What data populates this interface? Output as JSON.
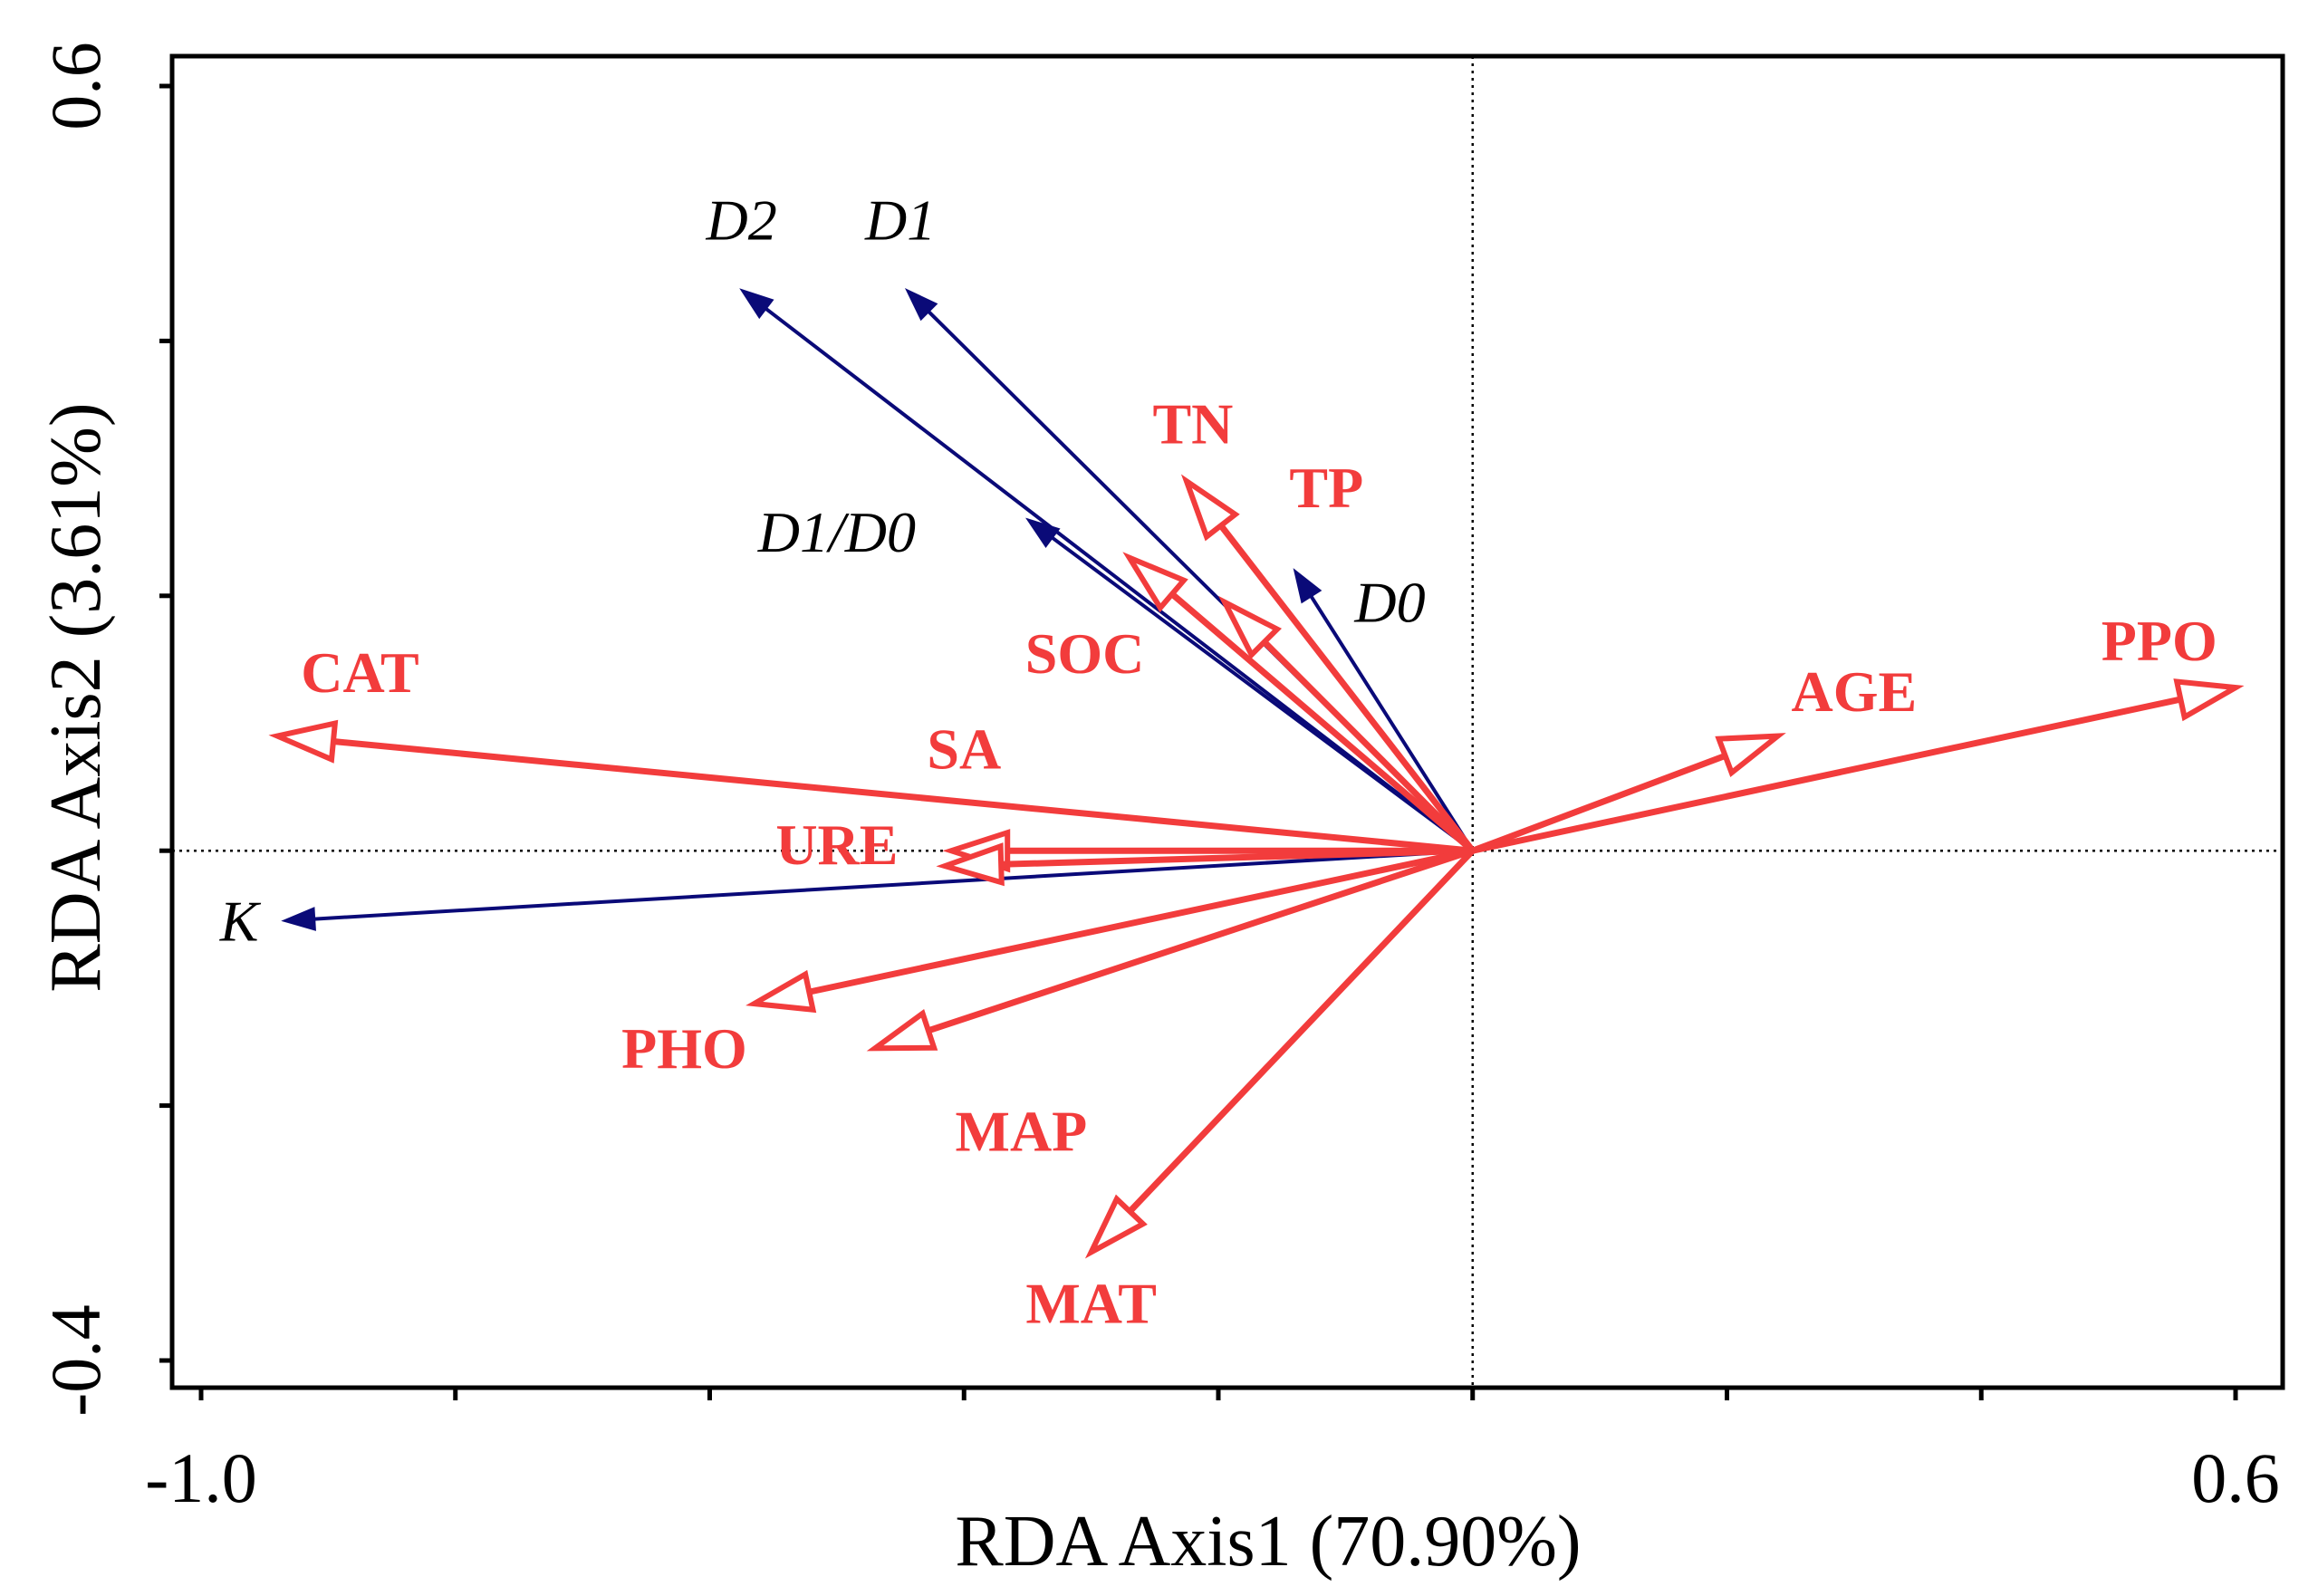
{
  "chart_data": {
    "type": "biplot",
    "title": "",
    "xlabel": "RDA Axis1 (70.90%)",
    "ylabel": "RDA Axis2 (3.61%)",
    "xlim": [
      -1.0,
      0.6
    ],
    "ylim": [
      -0.4,
      0.6
    ],
    "x_tick_labels": [
      {
        "value": -1.0,
        "text": "-1.0"
      },
      {
        "value": 0.6,
        "text": "0.6"
      }
    ],
    "y_tick_labels": [
      {
        "value": 0.6,
        "text": "0.6"
      },
      {
        "value": -0.4,
        "text": "-0.4"
      }
    ],
    "x_minor_ticks": [
      -1.0,
      -0.8,
      -0.6,
      -0.4,
      -0.2,
      0.0,
      0.2,
      0.4,
      0.6
    ],
    "y_minor_ticks": [
      0.6,
      0.4,
      0.2,
      0.0,
      -0.2,
      -0.4
    ],
    "colors": {
      "response": "#0a0a78",
      "explanatory": "#f23c3c"
    },
    "response_vectors": [
      {
        "name": "D2",
        "x": -0.575,
        "y": 0.44,
        "label_x": -0.575,
        "label_y": 0.49
      },
      {
        "name": "D1",
        "x": -0.445,
        "y": 0.44,
        "label_x": -0.45,
        "label_y": 0.49
      },
      {
        "name": "D1/D0",
        "x": -0.35,
        "y": 0.26,
        "label_x": -0.5,
        "label_y": 0.245
      },
      {
        "name": "D0",
        "x": -0.14,
        "y": 0.22,
        "label_x": -0.065,
        "label_y": 0.19
      },
      {
        "name": "K",
        "x": -0.935,
        "y": -0.055,
        "label_x": -0.97,
        "label_y": -0.06
      }
    ],
    "explanatory_vectors": [
      {
        "name": "TN",
        "x": -0.225,
        "y": 0.29,
        "label_x": -0.22,
        "label_y": 0.33
      },
      {
        "name": "TP",
        "x": -0.195,
        "y": 0.195,
        "label_x": -0.115,
        "label_y": 0.28
      },
      {
        "name": "SOC",
        "x": -0.27,
        "y": 0.23,
        "label_x": -0.305,
        "label_y": 0.15
      },
      {
        "name": "CAT",
        "x": -0.94,
        "y": 0.09,
        "label_x": -0.875,
        "label_y": 0.135
      },
      {
        "name": "SA",
        "x": -0.41,
        "y": 0.0,
        "label_x": -0.4,
        "label_y": 0.075
      },
      {
        "name": "URE",
        "x": -0.415,
        "y": -0.012,
        "label_x": -0.5,
        "label_y": 0.0
      },
      {
        "name": "PHO",
        "x": -0.565,
        "y": -0.12,
        "label_x": -0.62,
        "label_y": -0.16
      },
      {
        "name": "MAP",
        "x": -0.47,
        "y": -0.155,
        "label_x": -0.355,
        "label_y": -0.225
      },
      {
        "name": "MAT",
        "x": -0.3,
        "y": -0.315,
        "label_x": -0.3,
        "label_y": -0.36
      },
      {
        "name": "AGE",
        "x": 0.24,
        "y": 0.09,
        "label_x": 0.3,
        "label_y": 0.12
      },
      {
        "name": "PPO",
        "x": 0.6,
        "y": 0.128,
        "label_x": 0.54,
        "label_y": 0.16
      }
    ]
  }
}
